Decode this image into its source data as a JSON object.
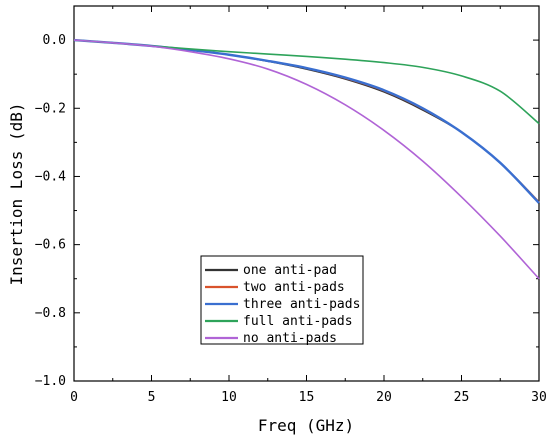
{
  "chart_data": {
    "type": "line",
    "title": "",
    "xlabel": "Freq (GHz)",
    "ylabel": "Insertion Loss (dB)",
    "xlim": [
      0,
      30
    ],
    "ylim": [
      -1.0,
      0.1
    ],
    "x_ticks": [
      0,
      5,
      10,
      15,
      20,
      25,
      30
    ],
    "x_tick_labels": [
      "0",
      "5",
      "10",
      "15",
      "20",
      "25",
      "30"
    ],
    "y_ticks": [
      0.0,
      -0.2,
      -0.4,
      -0.6,
      -0.8,
      -1.0
    ],
    "y_tick_labels": [
      "0.0",
      "−0.2",
      "−0.4",
      "−0.6",
      "−0.8",
      "−1.0"
    ],
    "grid": false,
    "legend_position": "bottom-center",
    "x": [
      0,
      2.5,
      5,
      7.5,
      10,
      12.5,
      15,
      17.5,
      20,
      22.5,
      25,
      27.5,
      30
    ],
    "series": [
      {
        "name": "one anti-pad",
        "color": "#333333",
        "values": [
          0,
          -0.008,
          -0.017,
          -0.029,
          -0.043,
          -0.062,
          -0.085,
          -0.114,
          -0.152,
          -0.205,
          -0.27,
          -0.36,
          -0.475
        ]
      },
      {
        "name": "two anti-pads",
        "color": "#d9532c",
        "values": [
          0,
          -0.008,
          -0.017,
          -0.029,
          -0.043,
          -0.061,
          -0.083,
          -0.112,
          -0.149,
          -0.202,
          -0.27,
          -0.36,
          -0.475
        ]
      },
      {
        "name": "three anti-pads",
        "color": "#3a6fd0",
        "values": [
          0,
          -0.008,
          -0.017,
          -0.029,
          -0.043,
          -0.061,
          -0.082,
          -0.11,
          -0.147,
          -0.2,
          -0.27,
          -0.36,
          -0.478
        ]
      },
      {
        "name": "full anti-pads",
        "color": "#2ea35a",
        "values": [
          0,
          -0.008,
          -0.017,
          -0.026,
          -0.034,
          -0.041,
          -0.048,
          -0.056,
          -0.066,
          -0.08,
          -0.105,
          -0.15,
          -0.245
        ]
      },
      {
        "name": "no anti-pads",
        "color": "#b064d6",
        "values": [
          0,
          -0.008,
          -0.018,
          -0.034,
          -0.055,
          -0.085,
          -0.13,
          -0.19,
          -0.265,
          -0.355,
          -0.46,
          -0.575,
          -0.7
        ]
      }
    ]
  }
}
